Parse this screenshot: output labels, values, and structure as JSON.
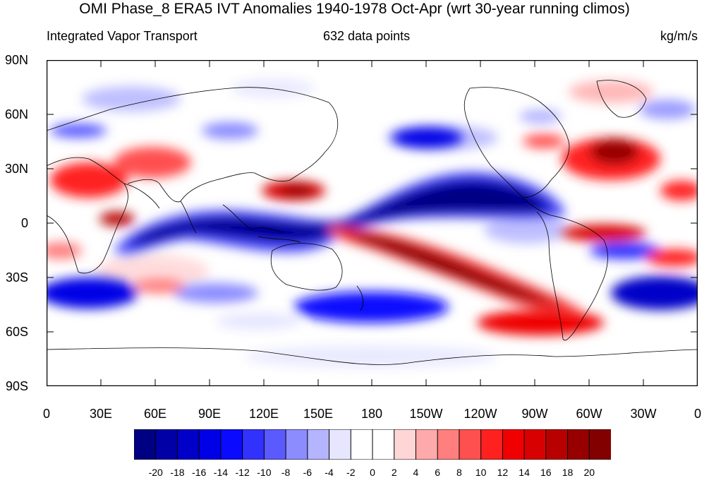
{
  "title": "OMI Phase_8 ERA5 IVT Anomalies 1940-1978 Oct-Apr (wrt 30-year running climos)",
  "left_string": "Integrated Vapor Transport",
  "center_string": "632 data points",
  "right_string": "kg/m/s",
  "lat_labels": [
    "90N",
    "60N",
    "30N",
    "0",
    "30S",
    "60S",
    "90S"
  ],
  "lon_labels": [
    "0",
    "30E",
    "60E",
    "90E",
    "120E",
    "150E",
    "180",
    "150W",
    "120W",
    "90W",
    "60W",
    "30W",
    "0"
  ],
  "colorbar": {
    "tick_labels": [
      "-20",
      "-18",
      "-16",
      "-14",
      "-12",
      "-10",
      "-8",
      "-6",
      "-4",
      "-2",
      "0",
      "2",
      "4",
      "6",
      "8",
      "10",
      "12",
      "14",
      "16",
      "18",
      "20"
    ],
    "colors": [
      "#000082",
      "#0000a6",
      "#0000c8",
      "#0000e6",
      "#0a0aff",
      "#3232ff",
      "#5a5aff",
      "#8c8cff",
      "#b4b4ff",
      "#e6e6ff",
      "#ffffff",
      "#ffffff",
      "#ffd6d6",
      "#ffaaaa",
      "#ff7e7e",
      "#ff5050",
      "#ff2020",
      "#f00000",
      "#d80000",
      "#b80000",
      "#960000",
      "#820000"
    ]
  },
  "map_field": {
    "lon_range": [
      0,
      360
    ],
    "lat_range": [
      -90,
      90
    ],
    "anomaly_blobs": [
      {
        "region": "tropical Indian Ocean / Maritime Continent",
        "value": -22
      },
      {
        "region": "tropical central & east Pacific",
        "value": -22
      },
      {
        "region": "subtropical South Pacific band",
        "value": 20
      },
      {
        "region": "North Pacific east of Asia",
        "value": 14
      },
      {
        "region": "North Atlantic",
        "value": 16
      },
      {
        "region": "Africa / Arabian Sea",
        "value": 14
      },
      {
        "region": "Southern Ocean south of Africa",
        "value": -14
      },
      {
        "region": "Southern Ocean south of Australia",
        "value": -14
      },
      {
        "region": "South Atlantic / east of South America",
        "value": -18
      },
      {
        "region": "South of South America",
        "value": 14
      }
    ]
  }
}
